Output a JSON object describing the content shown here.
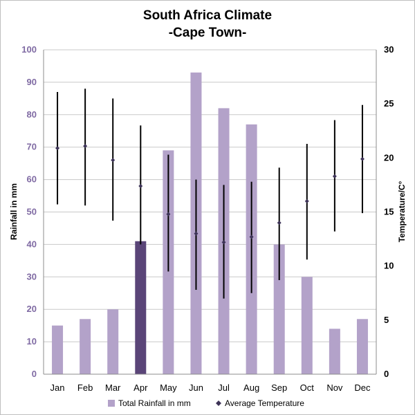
{
  "chart_data": {
    "type": "bar",
    "title_line1": "South Africa Climate",
    "title_line2": "-Cape Town-",
    "categories": [
      "Jan",
      "Feb",
      "Mar",
      "Apr",
      "May",
      "Jun",
      "Jul",
      "Aug",
      "Sep",
      "Oct",
      "Nov",
      "Dec"
    ],
    "ylabel_left": "Rainfall in mm",
    "ylabel_right": "Temperature/C°",
    "ylim_left": [
      0,
      100
    ],
    "yticks_left": [
      "0",
      "10",
      "20",
      "30",
      "40",
      "50",
      "60",
      "70",
      "80",
      "90",
      "100"
    ],
    "ylim_right": [
      0,
      30
    ],
    "yticks_right": [
      "0",
      "5",
      "10",
      "15",
      "20",
      "25",
      "30"
    ],
    "grid": true,
    "highlight_index": 3,
    "series": [
      {
        "name": "Total Rainfall in mm",
        "kind": "bar",
        "values": [
          15,
          17,
          20,
          41,
          69,
          93,
          82,
          77,
          40,
          30,
          14,
          17
        ],
        "color": "#b3a2c9",
        "highlight_color": "#5a4578"
      },
      {
        "name": "Average Temperature",
        "kind": "point-with-range",
        "values": [
          20.9,
          21.1,
          19.8,
          17.4,
          14.8,
          13.0,
          12.2,
          12.7,
          14.0,
          16.0,
          18.3,
          19.9
        ],
        "low": [
          15.7,
          15.6,
          14.2,
          12.0,
          9.5,
          7.8,
          7.0,
          7.5,
          8.7,
          10.6,
          13.2,
          14.9
        ],
        "high": [
          26.1,
          26.4,
          25.5,
          23.0,
          20.3,
          18.0,
          17.5,
          17.8,
          19.1,
          21.3,
          23.5,
          24.9
        ],
        "color": "#3d3357",
        "range_color": "#000000"
      }
    ],
    "legend_position": "bottom"
  }
}
